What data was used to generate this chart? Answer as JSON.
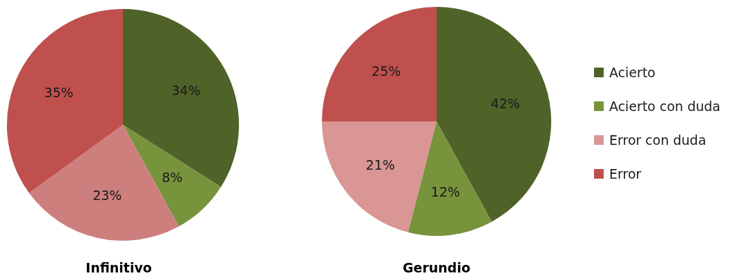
{
  "chart_data": [
    {
      "type": "pie",
      "title": "Infinitivo",
      "categories": [
        null,
        null,
        null,
        null
      ],
      "values": [
        34,
        8,
        23,
        35
      ],
      "colors": [
        "#4f6228",
        "#77933c",
        "#cd7f7e",
        "#c0504d"
      ],
      "value_labels": [
        "34%",
        "8%",
        "23%",
        "35%"
      ],
      "legend": false
    },
    {
      "type": "pie",
      "title": "Gerundio",
      "categories": [
        "Acierto",
        "Acierto con duda",
        "Error con duda",
        "Error"
      ],
      "values": [
        42,
        12,
        21,
        25
      ],
      "colors": [
        "#4f6228",
        "#77933c",
        "#d99694",
        "#c0504d"
      ],
      "value_labels": [
        "42%",
        "12%",
        "21%",
        "25%"
      ],
      "legend": "right"
    }
  ]
}
